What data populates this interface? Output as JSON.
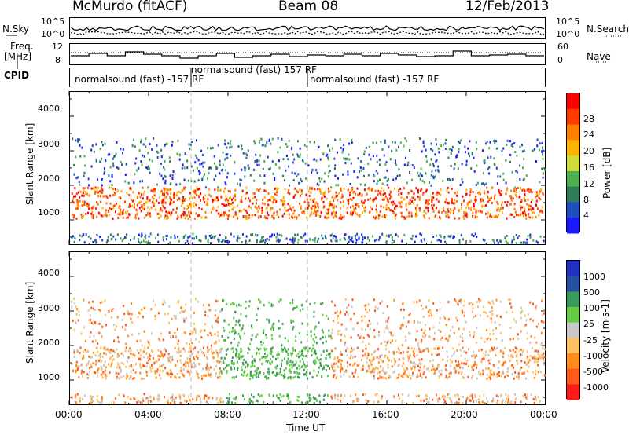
{
  "header": {
    "station": "McMurdo (fitACF)",
    "beam": "Beam 08",
    "date": "12/Feb/2013"
  },
  "left_labels": {
    "nsky": "N.Sky",
    "freq": "Freq.",
    "freq_unit": "[MHz]",
    "cpid": "CPID"
  },
  "right_labels": {
    "nsearch": "N.Search",
    "nave": "Nave"
  },
  "top_axis": {
    "noise_high": "10^5",
    "noise_low": "10^0",
    "freq_high": "12",
    "freq_low": "8",
    "nave_high": "60",
    "nave_low": "0"
  },
  "cpid_labels": [
    {
      "text": "normalsound (fast) -157 RF"
    },
    {
      "text": "normalsound (fast) 157 RF"
    },
    {
      "text": "normalsound (fast) -157 RF"
    }
  ],
  "axes": {
    "ylabel": "Slant Range [km]",
    "xlabel": "Time UT",
    "y_ticks": [
      "1000",
      "2000",
      "3000",
      "4000"
    ],
    "x_ticks": [
      "00:00",
      "04:00",
      "08:00",
      "12:00",
      "16:00",
      "20:00",
      "00:00"
    ]
  },
  "colors": {
    "power": [
      "#1a1aff",
      "#1f4fbf",
      "#2e7d57",
      "#4caf50",
      "#cddc39",
      "#ffb300",
      "#ff7f00",
      "#ff3b00",
      "#ff0000"
    ],
    "velocity": [
      "#ff1a1a",
      "#ff5a1a",
      "#ff8c1a",
      "#ffc060",
      "#c8c8c8",
      "#66cc44",
      "#3a9a5a",
      "#2850a0",
      "#2030c0"
    ]
  },
  "chart_data": [
    {
      "type": "heatmap",
      "title": "",
      "xlabel": "Time UT",
      "ylabel": "Slant Range [km]",
      "colorbar_label": "Power [dB]",
      "colorbar_ticks": [
        "4",
        "8",
        "12",
        "16",
        "20",
        "24",
        "28"
      ],
      "xlim": [
        "00:00",
        "24:00"
      ],
      "ylim": [
        200,
        4600
      ]
    },
    {
      "type": "heatmap",
      "title": "",
      "xlabel": "Time UT",
      "ylabel": "Slant Range [km]",
      "colorbar_label": "Velocity [m s-1]",
      "colorbar_ticks": [
        "1000",
        "500",
        "100",
        "25",
        "-25",
        "-100",
        "-500",
        "-1000"
      ],
      "xlim": [
        "00:00",
        "24:00"
      ],
      "ylim": [
        200,
        4600
      ]
    }
  ]
}
